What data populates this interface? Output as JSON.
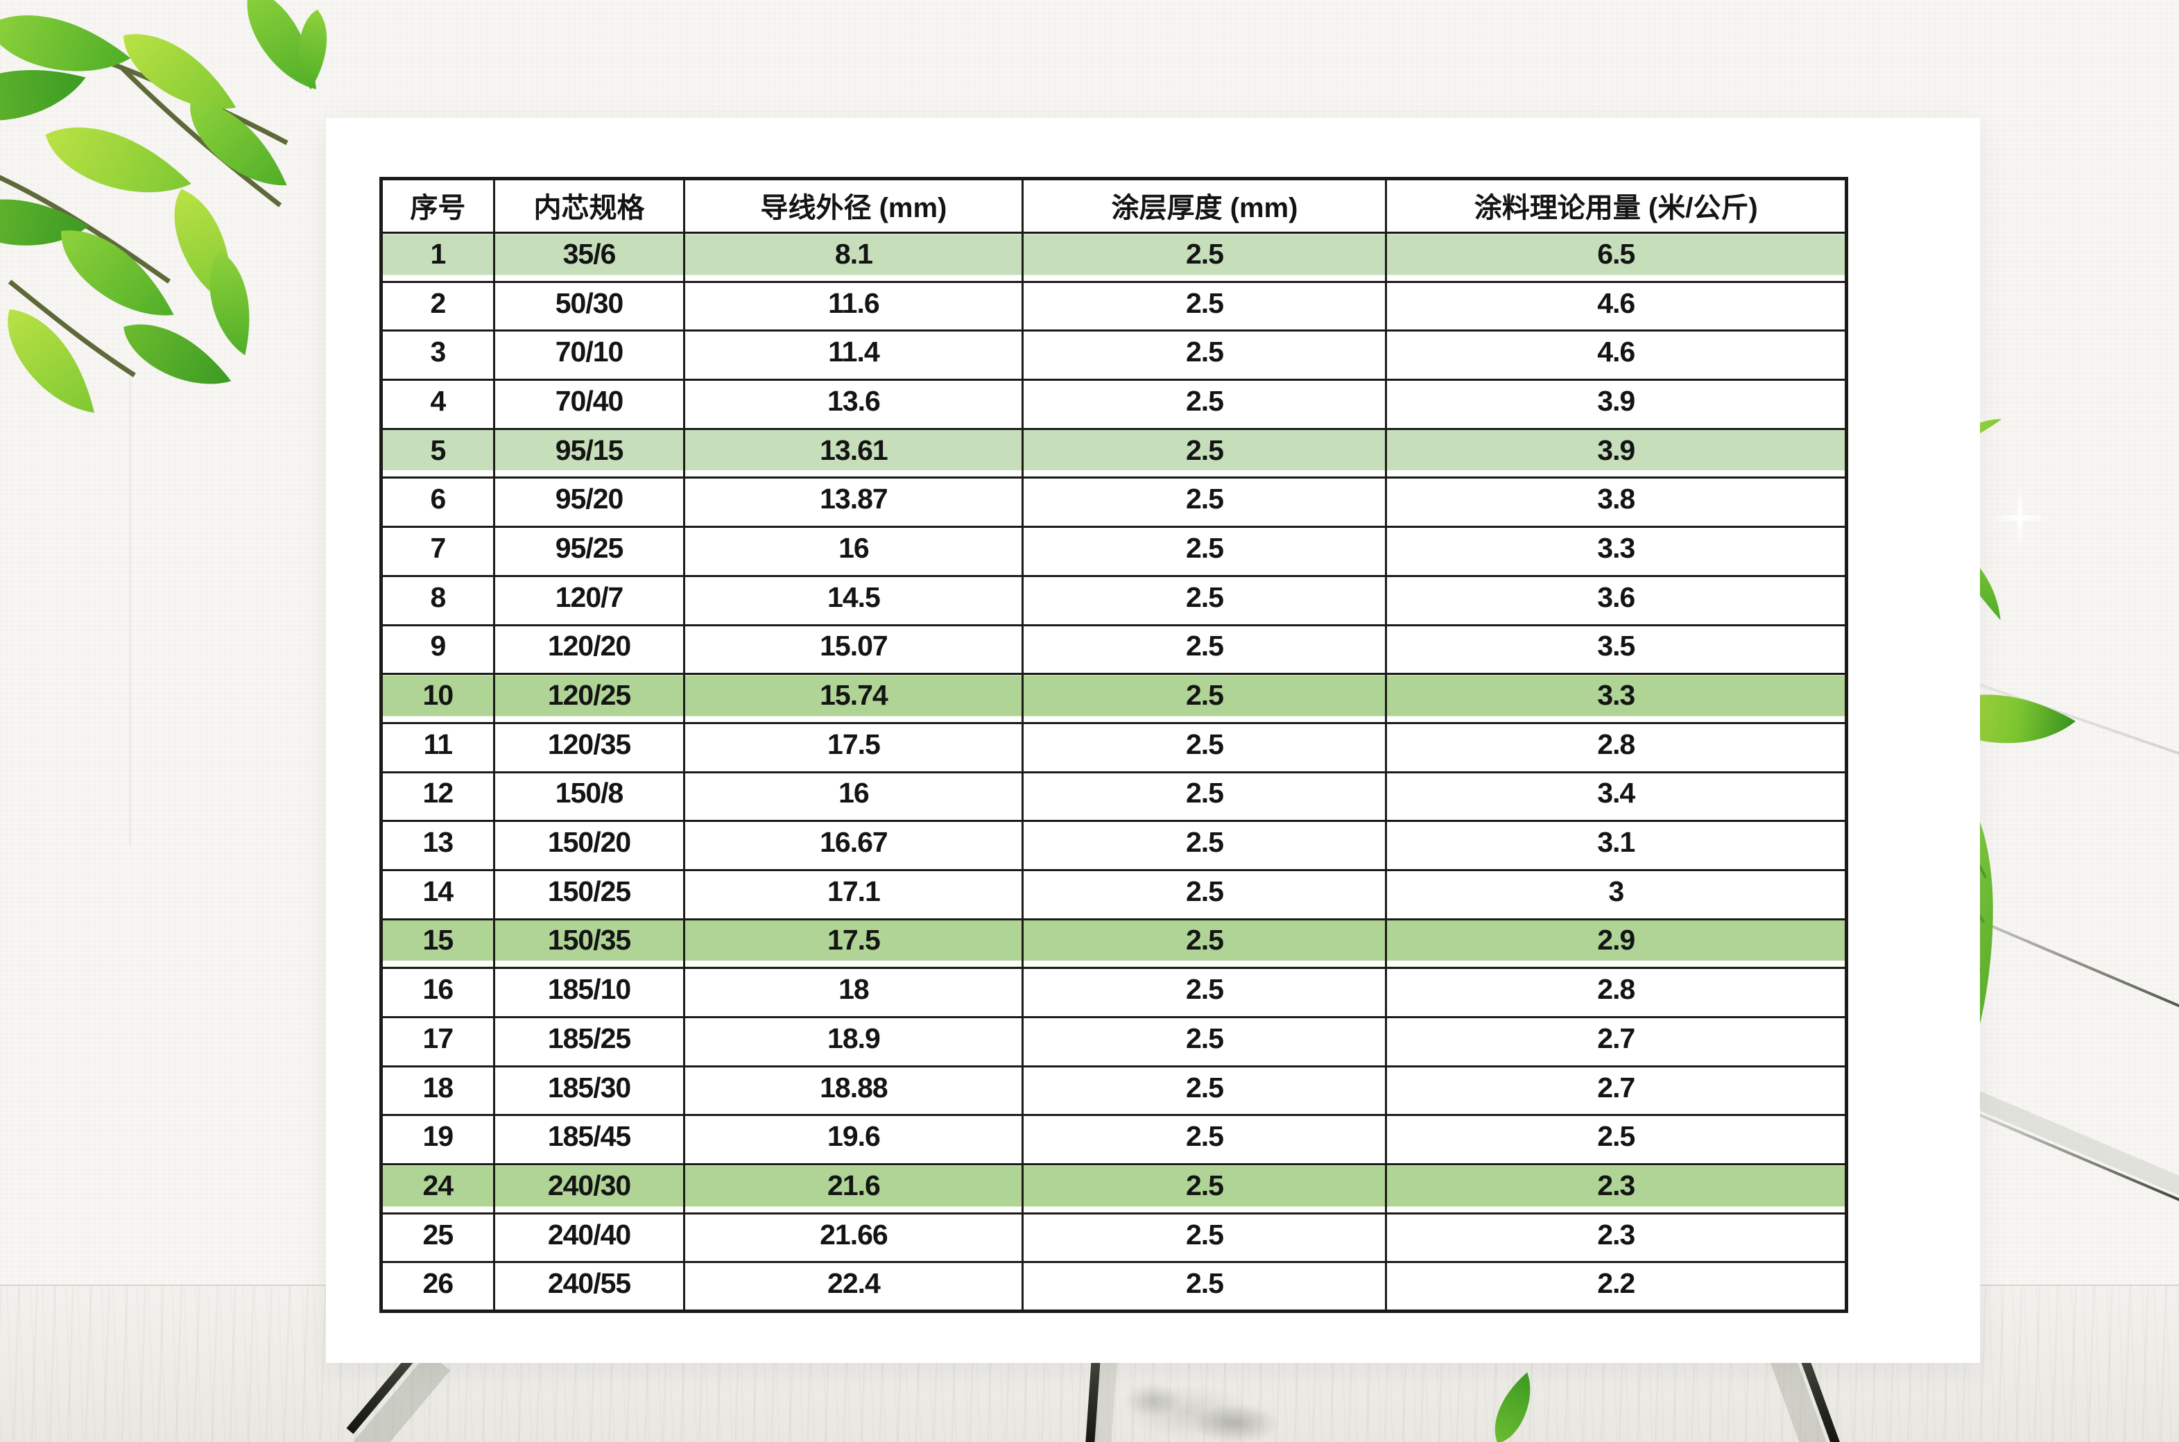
{
  "table": {
    "columns": [
      "序号",
      "内芯规格",
      "导线外径 (mm)",
      "涂层厚度 (mm)",
      "涂料理论用量 (米/公斤)"
    ],
    "rows": [
      {
        "hl": "light",
        "cells": [
          "1",
          "35/6",
          "8.1",
          "2.5",
          "6.5"
        ]
      },
      {
        "hl": "",
        "cells": [
          "2",
          "50/30",
          "11.6",
          "2.5",
          "4.6"
        ]
      },
      {
        "hl": "",
        "cells": [
          "3",
          "70/10",
          "11.4",
          "2.5",
          "4.6"
        ]
      },
      {
        "hl": "",
        "cells": [
          "4",
          "70/40",
          "13.6",
          "2.5",
          "3.9"
        ]
      },
      {
        "hl": "light",
        "cells": [
          "5",
          "95/15",
          "13.61",
          "2.5",
          "3.9"
        ]
      },
      {
        "hl": "",
        "cells": [
          "6",
          "95/20",
          "13.87",
          "2.5",
          "3.8"
        ]
      },
      {
        "hl": "",
        "cells": [
          "7",
          "95/25",
          "16",
          "2.5",
          "3.3"
        ]
      },
      {
        "hl": "",
        "cells": [
          "8",
          "120/7",
          "14.5",
          "2.5",
          "3.6"
        ]
      },
      {
        "hl": "",
        "cells": [
          "9",
          "120/20",
          "15.07",
          "2.5",
          "3.5"
        ]
      },
      {
        "hl": "strong",
        "cells": [
          "10",
          "120/25",
          "15.74",
          "2.5",
          "3.3"
        ]
      },
      {
        "hl": "",
        "cells": [
          "11",
          "120/35",
          "17.5",
          "2.5",
          "2.8"
        ]
      },
      {
        "hl": "",
        "cells": [
          "12",
          "150/8",
          "16",
          "2.5",
          "3.4"
        ]
      },
      {
        "hl": "",
        "cells": [
          "13",
          "150/20",
          "16.67",
          "2.5",
          "3.1"
        ]
      },
      {
        "hl": "",
        "cells": [
          "14",
          "150/25",
          "17.1",
          "2.5",
          "3"
        ]
      },
      {
        "hl": "strong",
        "cells": [
          "15",
          "150/35",
          "17.5",
          "2.5",
          "2.9"
        ]
      },
      {
        "hl": "",
        "cells": [
          "16",
          "185/10",
          "18",
          "2.5",
          "2.8"
        ]
      },
      {
        "hl": "",
        "cells": [
          "17",
          "185/25",
          "18.9",
          "2.5",
          "2.7"
        ]
      },
      {
        "hl": "",
        "cells": [
          "18",
          "185/30",
          "18.88",
          "2.5",
          "2.7"
        ]
      },
      {
        "hl": "",
        "cells": [
          "19",
          "185/45",
          "19.6",
          "2.5",
          "2.5"
        ]
      },
      {
        "hl": "strong",
        "cells": [
          "24",
          "240/30",
          "21.6",
          "2.5",
          "2.3"
        ]
      },
      {
        "hl": "",
        "cells": [
          "25",
          "240/40",
          "21.66",
          "2.5",
          "2.3"
        ]
      },
      {
        "hl": "",
        "cells": [
          "26",
          "240/55",
          "22.4",
          "2.5",
          "2.2"
        ]
      }
    ],
    "highlighted_serials": [
      "1",
      "5",
      "10",
      "15",
      "24"
    ],
    "colors": {
      "highlight_green_light": "#c6dfba",
      "highlight_green_strong": "#afd496",
      "border": "#1c1b18",
      "text": "#141414",
      "header_bg": "#ffffff",
      "row_bg": "#ffffff"
    }
  },
  "background": {
    "wall": "#f7f6f3",
    "card": "#ffffff",
    "floor_plank_gap": "#23261d",
    "leaf_greens": [
      "#b9e245",
      "#8dc63f",
      "#62b22f",
      "#3c9b23"
    ],
    "decor_icons": [
      "leaf-branch-decoration",
      "falling-leaf-small-icon",
      "falling-leaf-crescent-icon",
      "falling-leaf-long-icon",
      "fern-leaf-icon",
      "floor-leaf-icon",
      "sparkle-icon",
      "wood-floor",
      "plank-gap"
    ]
  }
}
